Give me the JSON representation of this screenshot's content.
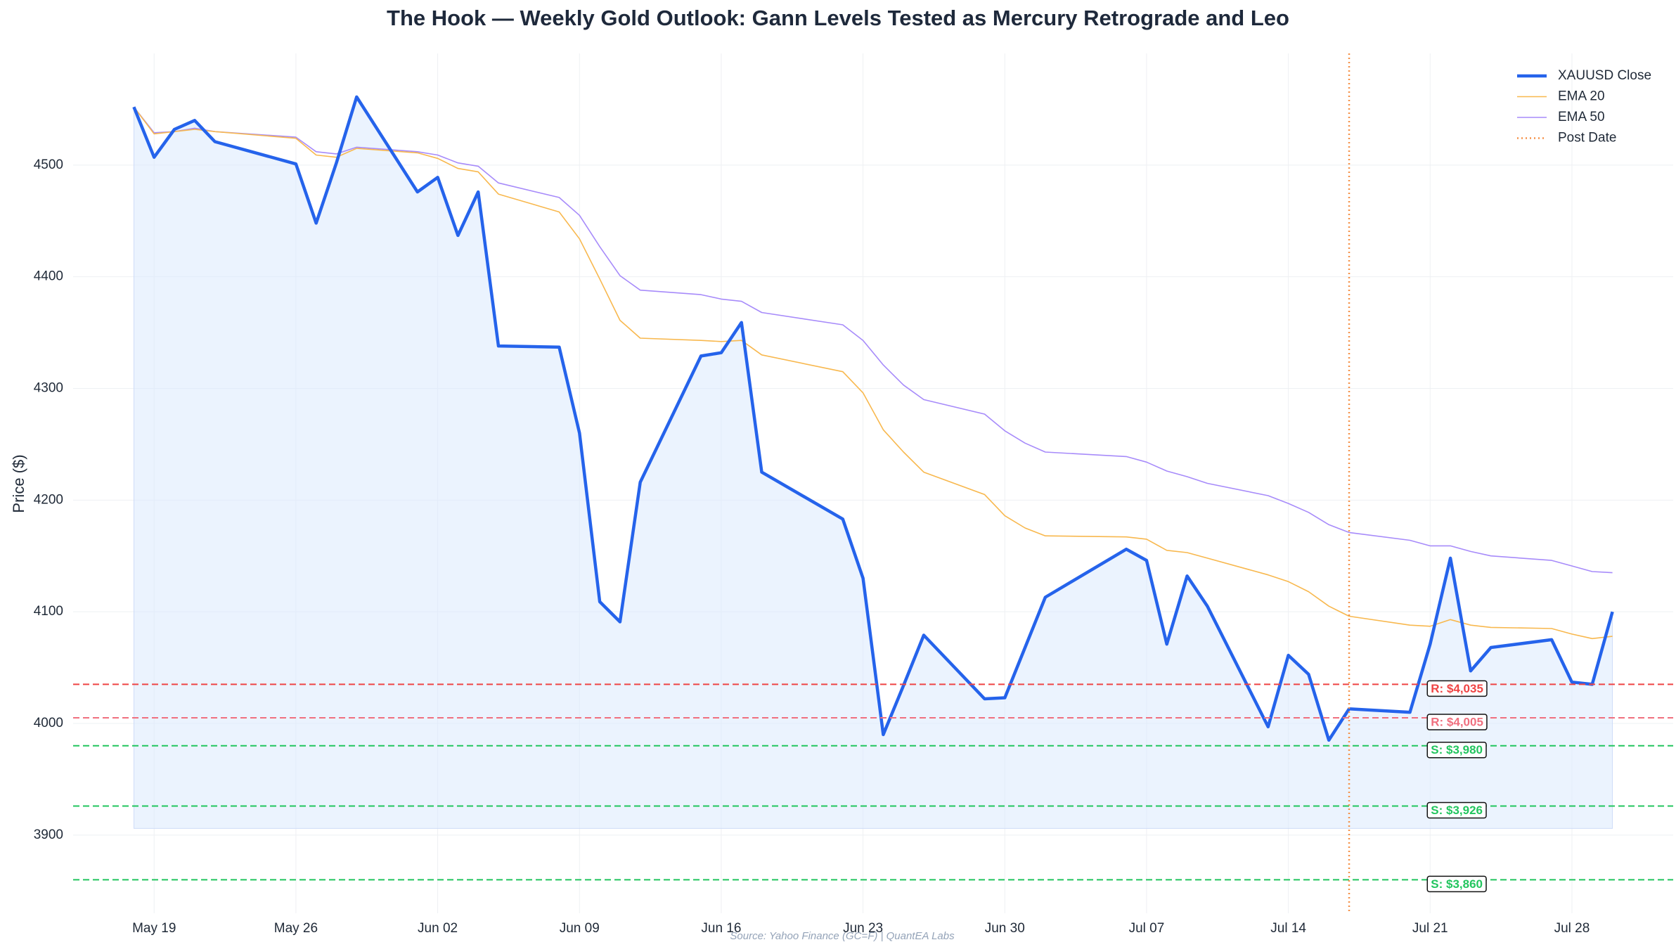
{
  "chart_data": {
    "type": "line",
    "title": "The Hook — Weekly Gold Outlook: Gann Levels Tested as Mercury Retrograde and Leo",
    "ylabel": "Price ($)",
    "source": "Source: Yahoo Finance (GC=F) | QuantEA Labs",
    "x": [
      "May 18",
      "May 19",
      "May 20",
      "May 21",
      "May 22",
      "May 26",
      "May 27",
      "May 28",
      "May 29",
      "Jun 01",
      "Jun 02",
      "Jun 03",
      "Jun 04",
      "Jun 05",
      "Jun 08",
      "Jun 09",
      "Jun 10",
      "Jun 11",
      "Jun 12",
      "Jun 15",
      "Jun 16",
      "Jun 17",
      "Jun 18",
      "Jun 22",
      "Jun 23",
      "Jun 24",
      "Jun 25",
      "Jun 26",
      "Jun 29",
      "Jun 30",
      "Jul 01",
      "Jul 02",
      "Jul 06",
      "Jul 07",
      "Jul 08",
      "Jul 09",
      "Jul 10",
      "Jul 13",
      "Jul 14",
      "Jul 15",
      "Jul 16",
      "Jul 17",
      "Jul 20",
      "Jul 21",
      "Jul 22",
      "Jul 23",
      "Jul 24",
      "Jul 27",
      "Jul 28",
      "Jul 29",
      "Jul 30"
    ],
    "series": [
      {
        "name": "XAUUSD Close",
        "color": "#2563eb",
        "width": 4.5,
        "fill": "#dbeafe",
        "fill_base": 3906,
        "values": [
          4552,
          4507,
          4532,
          4540,
          4521,
          4501,
          4448,
          4502,
          4561,
          4476,
          4489,
          4437,
          4476,
          4338,
          4337,
          4260,
          4109,
          4091,
          4216,
          4329,
          4332,
          4359,
          4225,
          4183,
          4130,
          3990,
          4034,
          4079,
          4022,
          4023,
          4068,
          4113,
          4156,
          4146,
          4071,
          4132,
          4105,
          3997,
          4061,
          4044,
          3985,
          4013,
          4010,
          4071,
          4148,
          4047,
          4068,
          4075,
          4037,
          4035,
          4100
        ]
      },
      {
        "name": "EMA 20",
        "color": "#f8b84e",
        "width": 1.6,
        "values": [
          4552,
          4528,
          4530,
          4532,
          4530,
          4524,
          4509,
          4507,
          4515,
          4511,
          4506,
          4497,
          4494,
          4474,
          4458,
          4434,
          4398,
          4361,
          4345,
          4343,
          4342,
          4343,
          4330,
          4315,
          4296,
          4263,
          4243,
          4225,
          4205,
          4186,
          4175,
          4168,
          4167,
          4165,
          4155,
          4153,
          4148,
          4133,
          4127,
          4118,
          4105,
          4096,
          4088,
          4087,
          4093,
          4088,
          4086,
          4085,
          4080,
          4076,
          4078
        ]
      },
      {
        "name": "EMA 50",
        "color": "#a78bfa",
        "width": 1.6,
        "values": [
          4552,
          4529,
          4530,
          4533,
          4530,
          4525,
          4512,
          4510,
          4516,
          4512,
          4509,
          4502,
          4499,
          4484,
          4471,
          4455,
          4427,
          4401,
          4388,
          4384,
          4380,
          4378,
          4368,
          4357,
          4343,
          4321,
          4303,
          4290,
          4277,
          4262,
          4251,
          4243,
          4239,
          4234,
          4226,
          4221,
          4215,
          4204,
          4197,
          4189,
          4178,
          4171,
          4164,
          4159,
          4159,
          4154,
          4150,
          4146,
          4141,
          4136,
          4135
        ]
      }
    ],
    "vlines": [
      {
        "name": "Post Date",
        "x": "Jul 17",
        "color": "#f5924a"
      }
    ],
    "levels": [
      {
        "label": "R: $4,035",
        "value": 4035,
        "color": "#ef4444"
      },
      {
        "label": "R: $4,005",
        "value": 4005,
        "color": "#f0707f"
      },
      {
        "label": "S: $3,980",
        "value": 3980,
        "color": "#22c55e"
      },
      {
        "label": "S: $3,926",
        "value": 3926,
        "color": "#22c55e"
      },
      {
        "label": "S: $3,860",
        "value": 3860,
        "color": "#22c55e"
      }
    ],
    "level_label_x": "Jul 21",
    "xlim": [
      "May 15",
      "Aug 02"
    ],
    "xticks": [
      "May 19",
      "May 26",
      "Jun 02",
      "Jun 09",
      "Jun 16",
      "Jun 23",
      "Jun 30",
      "Jul 07",
      "Jul 14",
      "Jul 21",
      "Jul 28"
    ],
    "ylim": [
      3830,
      4600
    ],
    "yticks": [
      3900,
      4000,
      4100,
      4200,
      4300,
      4400,
      4500
    ],
    "grid": true,
    "legend": "upper right"
  }
}
